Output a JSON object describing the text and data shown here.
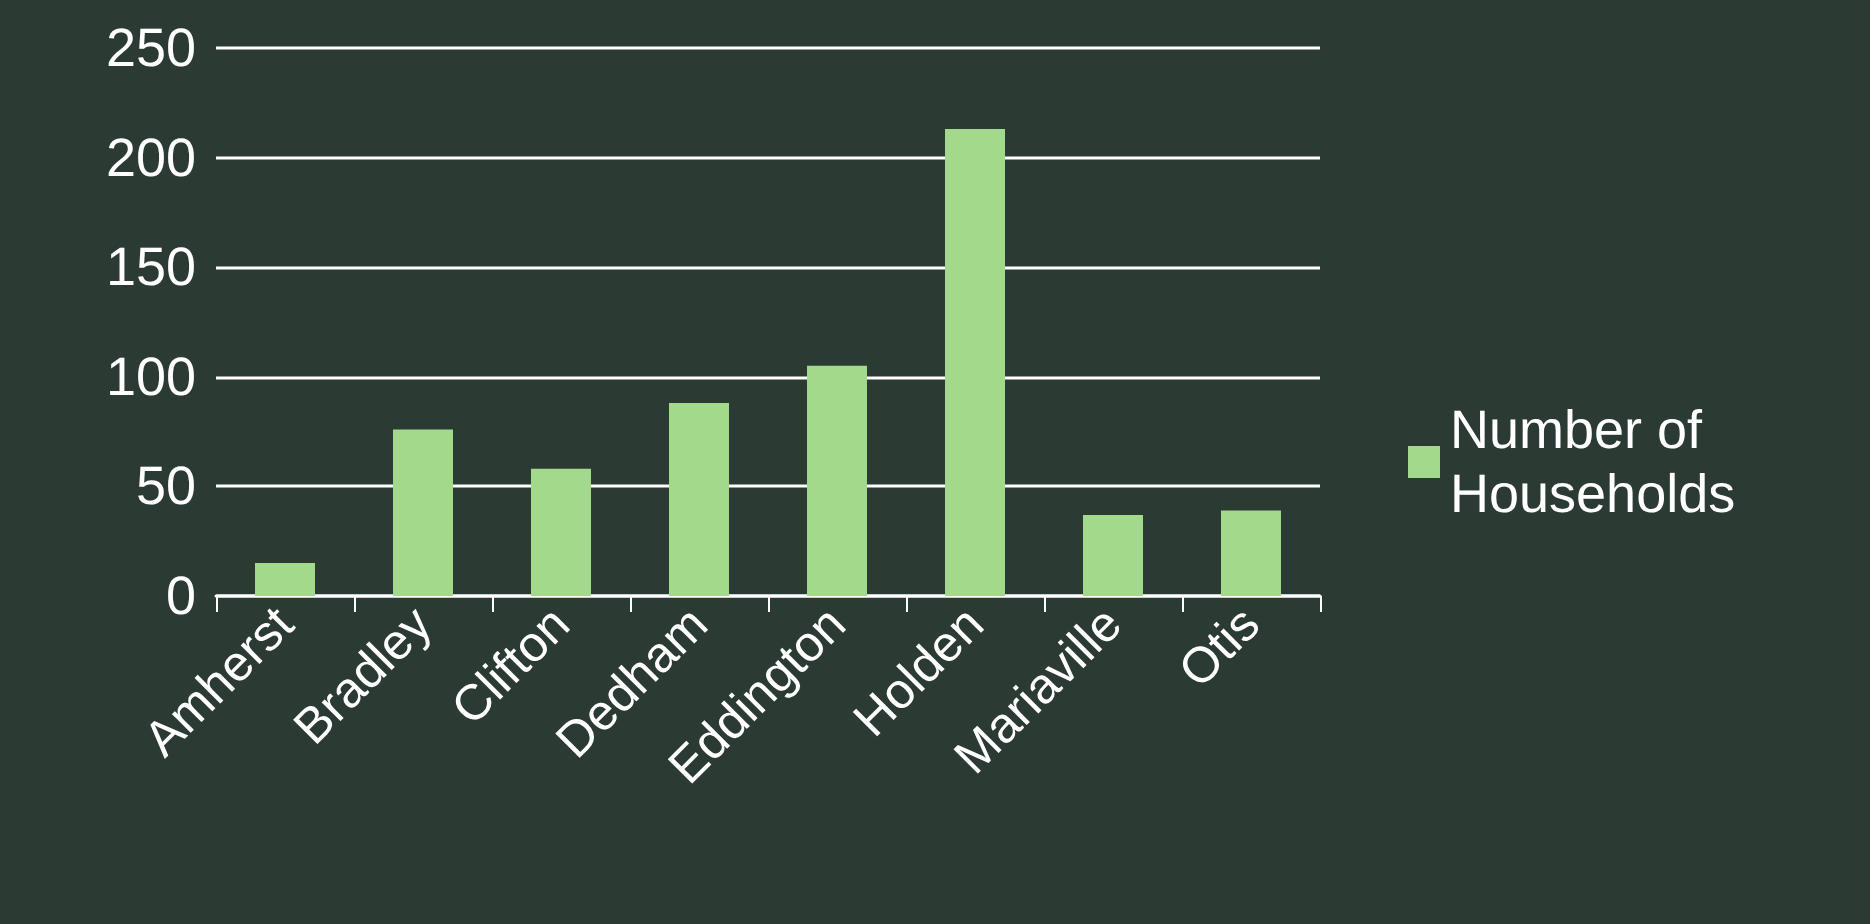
{
  "chart_data": {
    "type": "bar",
    "categories": [
      "Amherst",
      "Bradley",
      "Clifton",
      "Dedham",
      "Eddington",
      "Holden",
      "Mariaville",
      "Otis"
    ],
    "series": [
      {
        "name": "Number of Households",
        "color": "#a3d98b",
        "values": [
          15,
          76,
          58,
          88,
          105,
          213,
          37,
          39
        ]
      }
    ],
    "ylim": [
      0,
      250
    ],
    "yticks": [
      0,
      50,
      100,
      150,
      200,
      250
    ],
    "grid": "y",
    "legend": "right"
  }
}
